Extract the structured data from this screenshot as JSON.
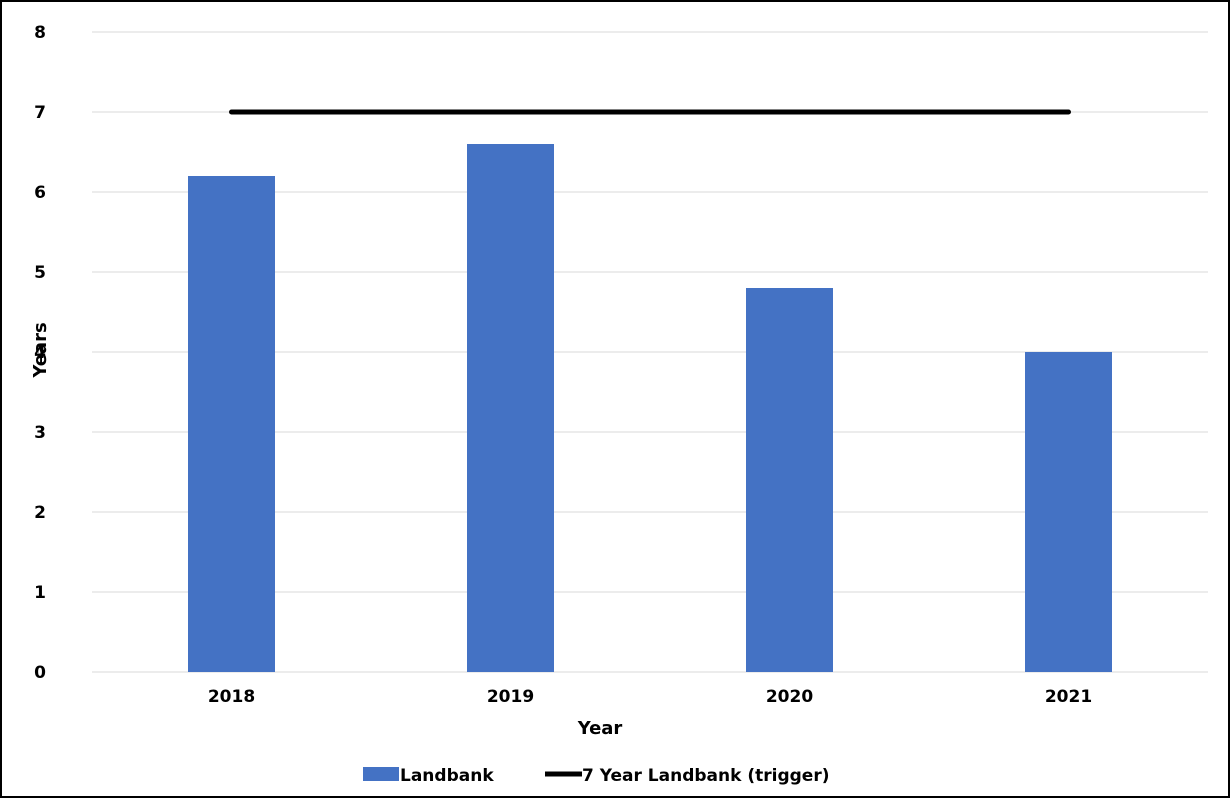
{
  "chart_data": {
    "type": "bar",
    "categories": [
      "2018",
      "2019",
      "2020",
      "2021"
    ],
    "series": [
      {
        "name": "Landbank",
        "kind": "bar",
        "color": "#4472C4",
        "values": [
          6.2,
          6.6,
          4.8,
          4.0
        ]
      },
      {
        "name": "7 Year Landbank (trigger)",
        "kind": "line",
        "color": "#000000",
        "values": [
          7,
          7,
          7,
          7
        ]
      }
    ],
    "xlabel": "Year",
    "ylabel": "Years",
    "ylim": [
      0,
      8
    ],
    "yticks": [
      "0",
      "1",
      "2",
      "3",
      "4",
      "5",
      "6",
      "7",
      "8"
    ],
    "grid": true,
    "gridline_color": "#d9d9d9",
    "legend_position": "bottom"
  }
}
